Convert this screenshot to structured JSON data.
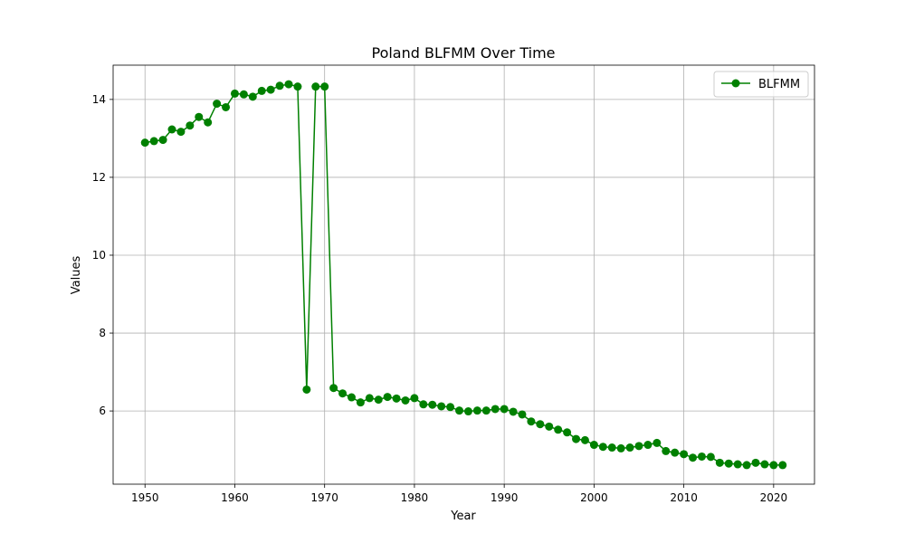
{
  "chart_data": {
    "type": "line",
    "title": "Poland BLFMM Over Time",
    "xlabel": "Year",
    "ylabel": "Values",
    "xlim": [
      1946.45,
      2024.55
    ],
    "ylim": [
      4.12,
      14.88
    ],
    "x_ticks": [
      1950,
      1960,
      1970,
      1980,
      1990,
      2000,
      2010,
      2020
    ],
    "y_ticks": [
      6,
      8,
      10,
      12,
      14
    ],
    "grid": true,
    "legend_position": "upper right",
    "series": [
      {
        "name": "BLFMM",
        "color": "#008000",
        "marker": "circle",
        "x": [
          1950,
          1951,
          1952,
          1953,
          1954,
          1955,
          1956,
          1957,
          1958,
          1959,
          1960,
          1961,
          1962,
          1963,
          1964,
          1965,
          1966,
          1967,
          1968,
          1969,
          1970,
          1971,
          1972,
          1973,
          1974,
          1975,
          1976,
          1977,
          1978,
          1979,
          1980,
          1981,
          1982,
          1983,
          1984,
          1985,
          1986,
          1987,
          1988,
          1989,
          1990,
          1991,
          1992,
          1993,
          1994,
          1995,
          1996,
          1997,
          1998,
          1999,
          2000,
          2001,
          2002,
          2003,
          2004,
          2005,
          2006,
          2007,
          2008,
          2009,
          2010,
          2011,
          2012,
          2013,
          2014,
          2015,
          2016,
          2017,
          2018,
          2019,
          2020,
          2021
        ],
        "y": [
          12.89,
          12.93,
          12.96,
          13.23,
          13.17,
          13.33,
          13.55,
          13.41,
          13.89,
          13.8,
          14.15,
          14.13,
          14.07,
          14.22,
          14.25,
          14.35,
          14.39,
          14.33,
          6.55,
          14.33,
          14.33,
          6.59,
          6.45,
          6.35,
          6.22,
          6.33,
          6.29,
          6.36,
          6.32,
          6.27,
          6.33,
          6.17,
          6.16,
          6.12,
          6.1,
          6.01,
          5.99,
          6.01,
          6.01,
          6.05,
          6.05,
          5.98,
          5.91,
          5.73,
          5.66,
          5.6,
          5.52,
          5.45,
          5.28,
          5.25,
          5.13,
          5.08,
          5.06,
          5.04,
          5.06,
          5.1,
          5.13,
          5.18,
          4.97,
          4.93,
          4.89,
          4.8,
          4.83,
          4.82,
          4.67,
          4.65,
          4.63,
          4.61,
          4.67,
          4.63,
          4.61,
          4.61
        ]
      }
    ]
  }
}
